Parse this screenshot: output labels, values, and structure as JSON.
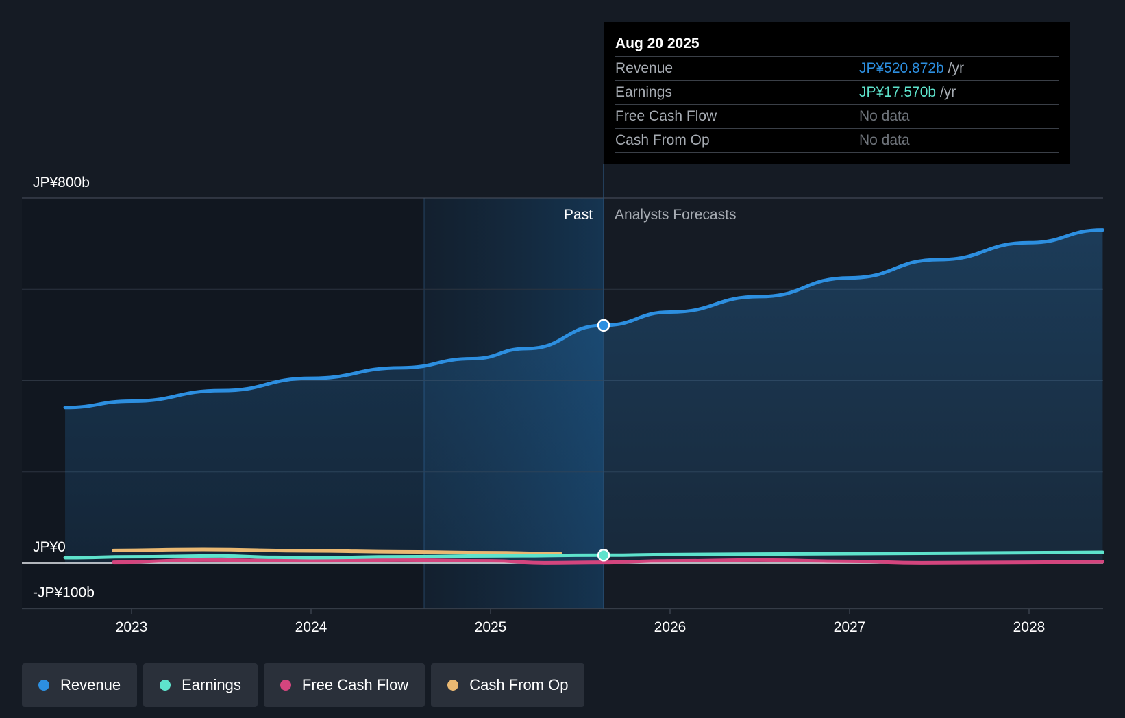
{
  "chart_data": {
    "type": "line",
    "x_ticks": [
      "2023",
      "2024",
      "2025",
      "2026",
      "2027",
      "2028"
    ],
    "y_labels": [
      "JP¥800b",
      "JP¥0",
      "-JP¥100b"
    ],
    "ylim": [
      -100,
      800
    ],
    "ylim_unit": "JP¥ billions",
    "sections": {
      "past": "Past",
      "forecast": "Analysts Forecasts"
    },
    "highlight_date": 2025.63,
    "series": [
      {
        "name": "Revenue",
        "color": "#2d8fe0",
        "points": [
          [
            2022.63,
            341
          ],
          [
            2023.0,
            355
          ],
          [
            2023.5,
            378
          ],
          [
            2024.0,
            405
          ],
          [
            2024.5,
            428
          ],
          [
            2024.9,
            448
          ],
          [
            2025.2,
            470
          ],
          [
            2025.63,
            521
          ],
          [
            2026.0,
            550
          ],
          [
            2026.5,
            584
          ],
          [
            2027.0,
            625
          ],
          [
            2027.5,
            665
          ],
          [
            2028.0,
            702
          ],
          [
            2028.41,
            730
          ]
        ]
      },
      {
        "name": "Earnings",
        "color": "#5ee3cc",
        "points": [
          [
            2022.63,
            12
          ],
          [
            2023.0,
            14
          ],
          [
            2023.5,
            16
          ],
          [
            2023.8,
            13
          ],
          [
            2024.0,
            12
          ],
          [
            2024.5,
            14
          ],
          [
            2025.0,
            16
          ],
          [
            2025.63,
            17.57
          ],
          [
            2026.0,
            19
          ],
          [
            2027.0,
            21
          ],
          [
            2028.0,
            23
          ],
          [
            2028.41,
            24
          ]
        ]
      },
      {
        "name": "Free Cash Flow",
        "color": "#d4457e",
        "points": [
          [
            2022.9,
            2
          ],
          [
            2023.4,
            7
          ],
          [
            2024.0,
            5
          ],
          [
            2024.5,
            7
          ],
          [
            2025.0,
            5
          ],
          [
            2025.3,
            1
          ],
          [
            2025.63,
            2
          ],
          [
            2026.0,
            5
          ],
          [
            2026.5,
            7
          ],
          [
            2027.0,
            4
          ],
          [
            2027.4,
            1
          ],
          [
            2028.0,
            2
          ],
          [
            2028.41,
            3
          ]
        ]
      },
      {
        "name": "Cash From Op",
        "color": "#e9b872",
        "points": [
          [
            2022.9,
            28
          ],
          [
            2023.4,
            30
          ],
          [
            2024.0,
            27
          ],
          [
            2024.5,
            25
          ],
          [
            2025.0,
            23
          ],
          [
            2025.39,
            21
          ]
        ]
      }
    ]
  },
  "tooltip": {
    "date": "Aug 20 2025",
    "rows": [
      {
        "label": "Revenue",
        "value": "JP¥520.872b",
        "unit": "/yr",
        "color": "#2d8fe0"
      },
      {
        "label": "Earnings",
        "value": "JP¥17.570b",
        "unit": "/yr",
        "color": "#5ee3cc"
      },
      {
        "label": "Free Cash Flow",
        "value": "No data",
        "unit": "",
        "color": "#6f747b"
      },
      {
        "label": "Cash From Op",
        "value": "No data",
        "unit": "",
        "color": "#6f747b"
      }
    ]
  },
  "legend": [
    {
      "label": "Revenue",
      "color": "#2d8fe0"
    },
    {
      "label": "Earnings",
      "color": "#5ee3cc"
    },
    {
      "label": "Free Cash Flow",
      "color": "#d4457e"
    },
    {
      "label": "Cash From Op",
      "color": "#e9b872"
    }
  ]
}
